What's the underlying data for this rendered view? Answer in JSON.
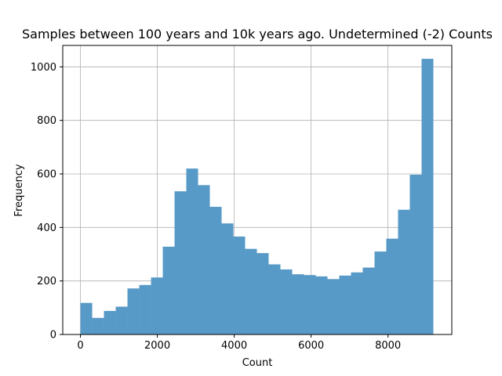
{
  "chart_data": {
    "type": "bar",
    "subtype": "histogram",
    "title": "Samples between 100 years and 10k years ago. Undetermined (-2) Counts",
    "xlabel": "Count",
    "ylabel": "Frequency",
    "xlim": [
      -460,
      9660
    ],
    "ylim": [
      0,
      1080
    ],
    "xticks": [
      0,
      2000,
      4000,
      6000,
      8000
    ],
    "xtick_labels": [
      "0",
      "2000",
      "4000",
      "6000",
      "8000"
    ],
    "yticks": [
      0,
      200,
      400,
      600,
      800,
      1000
    ],
    "ytick_labels": [
      "0",
      "200",
      "400",
      "600",
      "800",
      "1000"
    ],
    "grid": true,
    "bar_color": "#5799c7",
    "bin_edges": [
      0,
      306,
      612,
      918,
      1224,
      1530,
      1836,
      2142,
      2448,
      2754,
      3060,
      3366,
      3672,
      3978,
      4284,
      4590,
      4896,
      5202,
      5508,
      5814,
      6120,
      6426,
      6732,
      7038,
      7344,
      7650,
      7956,
      8262,
      8568,
      8874,
      9180
    ],
    "values": [
      118,
      62,
      88,
      104,
      172,
      185,
      213,
      328,
      535,
      620,
      558,
      477,
      415,
      366,
      320,
      304,
      262,
      243,
      225,
      222,
      217,
      207,
      220,
      232,
      250,
      310,
      358,
      466,
      597,
      1030
    ]
  }
}
